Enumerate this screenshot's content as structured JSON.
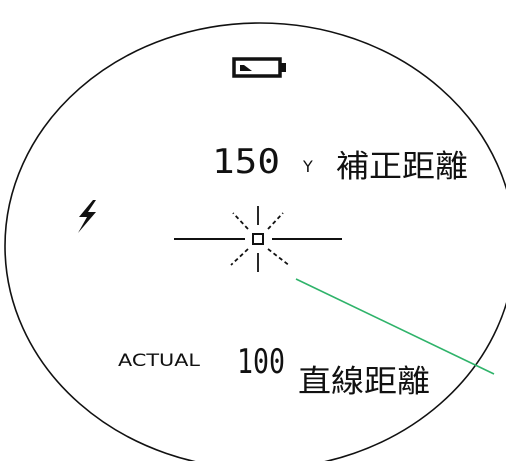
{
  "display": {
    "battery_icon": "battery-icon",
    "mode_icon": "lightning-icon",
    "reticle_icon": "crosshair-reticle-icon",
    "corrected_value": "150",
    "corrected_unit": "Y",
    "corrected_label": "補正距離",
    "actual_prefix": "ACTUAL",
    "actual_value": "100",
    "actual_label": "直線距離"
  },
  "colors": {
    "outline": "#111111",
    "leader_line": "#2fb36a",
    "background": "#ffffff"
  }
}
